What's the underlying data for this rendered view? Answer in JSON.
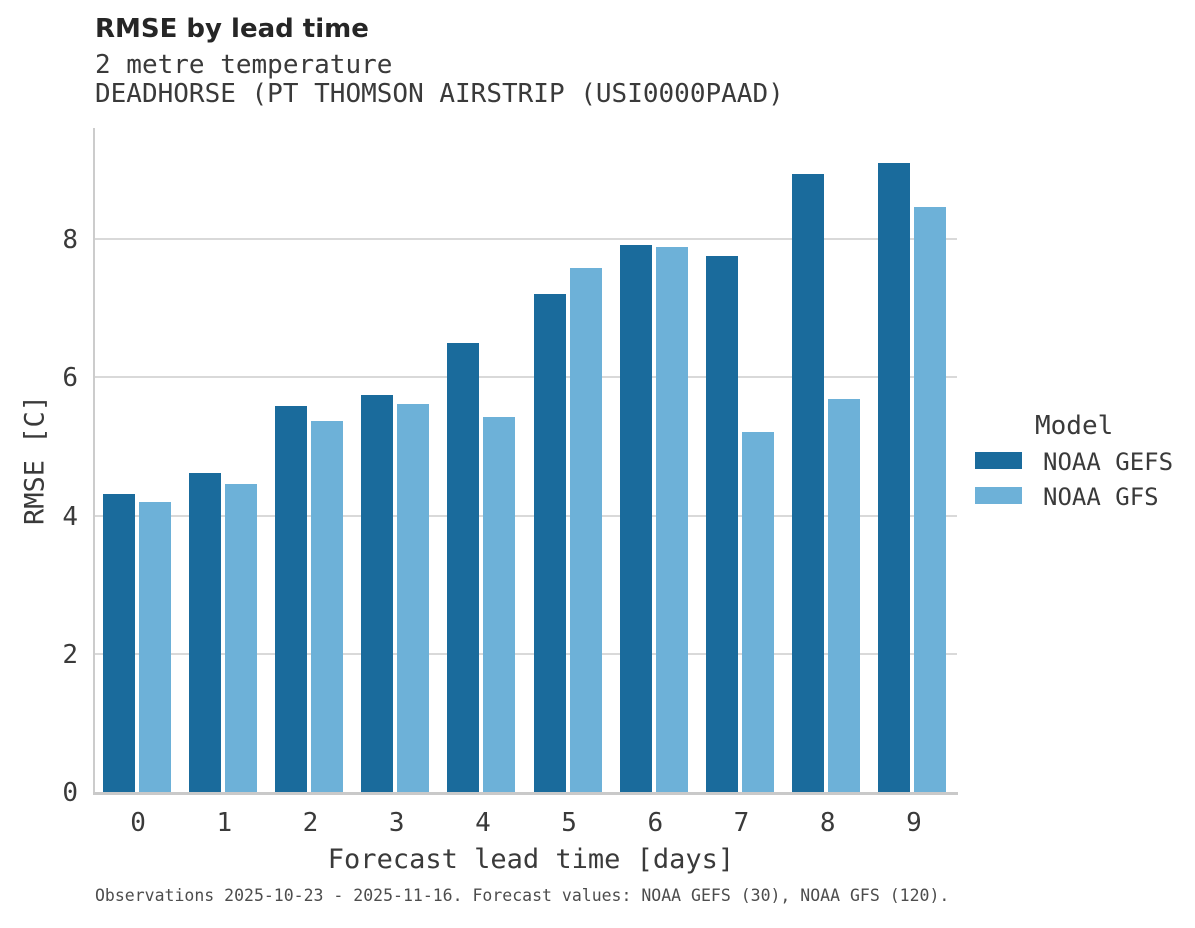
{
  "header": {
    "title": "RMSE by lead time",
    "subtitle_line1": "2 metre temperature",
    "subtitle_line2": "DEADHORSE (PT THOMSON AIRSTRIP (USI0000PAAD)"
  },
  "chart_data": {
    "type": "bar",
    "title": "RMSE by lead time",
    "subtitle": [
      "2 metre temperature",
      "DEADHORSE (PT THOMSON AIRSTRIP (USI0000PAAD)"
    ],
    "categories": [
      "0",
      "1",
      "2",
      "3",
      "4",
      "5",
      "6",
      "7",
      "8",
      "9"
    ],
    "series": [
      {
        "name": "NOAA GEFS",
        "color": "#1a6b9c",
        "values": [
          4.31,
          4.61,
          5.59,
          5.74,
          6.5,
          7.2,
          7.92,
          7.75,
          8.94,
          9.1
        ]
      },
      {
        "name": "NOAA GFS",
        "color": "#6db1d8",
        "values": [
          4.2,
          4.45,
          5.36,
          5.61,
          5.42,
          7.58,
          7.89,
          5.21,
          5.69,
          8.46
        ]
      }
    ],
    "xlabel": "Forecast lead time [days]",
    "ylabel": "RMSE [C]",
    "ylim": [
      0,
      9.6
    ],
    "yticks": [
      0,
      2,
      4,
      6,
      8
    ],
    "grid": "horizontal",
    "legend_position": "right"
  },
  "legend": {
    "title": "Model",
    "entries": [
      {
        "label": "NOAA GEFS",
        "color": "#1a6b9c"
      },
      {
        "label": "NOAA GFS",
        "color": "#6db1d8"
      }
    ]
  },
  "footer": {
    "note": "Observations 2025-10-23 - 2025-11-16. Forecast values: NOAA GEFS (30), NOAA GFS (120)."
  },
  "colors": {
    "series_dark": "#1a6b9c",
    "series_light": "#6db1d8",
    "gridline": "#d9d9d9",
    "axis_spine": "#cccccc",
    "title_text": "#262626",
    "body_text": "#3a3a3a",
    "footer_text": "#4d4d4d"
  }
}
